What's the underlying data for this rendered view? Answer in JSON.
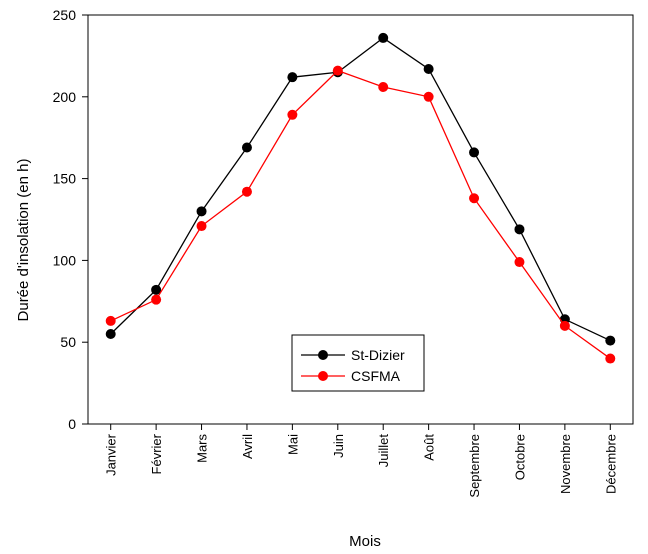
{
  "chart_data": {
    "type": "line",
    "title": "",
    "xlabel": "Mois",
    "ylabel": "Durée d'insolation (en h)",
    "ylim": [
      0,
      250
    ],
    "yticks": [
      0,
      50,
      100,
      150,
      200,
      250
    ],
    "categories": [
      "Janvier",
      "Février",
      "Mars",
      "Avril",
      "Mai",
      "Juin",
      "Juillet",
      "Août",
      "Septembre",
      "Octobre",
      "Novembre",
      "Décembre"
    ],
    "grid": false,
    "legend_position": "bottom-center",
    "series": [
      {
        "name": "St-Dizier",
        "color": "#000000",
        "values": [
          55,
          82,
          130,
          169,
          212,
          215,
          236,
          217,
          166,
          119,
          64,
          51
        ]
      },
      {
        "name": "CSFMA",
        "color": "#ff0000",
        "values": [
          63,
          76,
          121,
          142,
          189,
          216,
          206,
          200,
          138,
          99,
          60,
          40
        ]
      }
    ]
  }
}
